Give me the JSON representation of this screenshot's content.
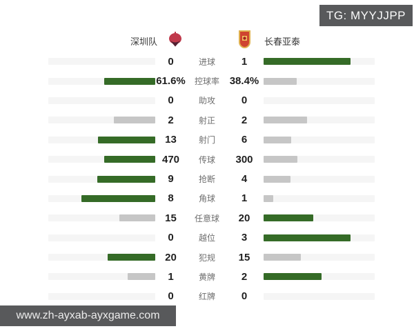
{
  "watermarks": {
    "telegram": "TG: MYYJJPP",
    "website": "www.zh-ayxab-ayxgame.com"
  },
  "header": {
    "home_team": {
      "name": "深圳队"
    },
    "away_team": {
      "name": "长春亚泰"
    }
  },
  "rows": [
    {
      "label": "进球",
      "home": "0",
      "away": "1"
    },
    {
      "label": "控球率",
      "home": "61.6%",
      "away": "38.4%"
    },
    {
      "label": "助攻",
      "home": "0",
      "away": "0"
    },
    {
      "label": "射正",
      "home": "2",
      "away": "2"
    },
    {
      "label": "射门",
      "home": "13",
      "away": "6"
    },
    {
      "label": "传球",
      "home": "470",
      "away": "300"
    },
    {
      "label": "抢断",
      "home": "9",
      "away": "4"
    },
    {
      "label": "角球",
      "home": "8",
      "away": "1"
    },
    {
      "label": "任意球",
      "home": "15",
      "away": "20"
    },
    {
      "label": "越位",
      "home": "0",
      "away": "3"
    },
    {
      "label": "犯规",
      "home": "20",
      "away": "15"
    },
    {
      "label": "黄牌",
      "home": "1",
      "away": "2"
    },
    {
      "label": "红牌",
      "home": "0",
      "away": "0"
    }
  ],
  "chart_data": {
    "type": "bar",
    "subtype": "paired-horizontal-team-comparison",
    "categories": [
      "进球",
      "控球率",
      "助攻",
      "射正",
      "射门",
      "传球",
      "抢断",
      "角球",
      "任意球",
      "越位",
      "犯规",
      "黄牌",
      "红牌"
    ],
    "series": [
      {
        "name": "深圳队",
        "values": [
          0,
          61.6,
          0,
          2,
          13,
          470,
          9,
          8,
          15,
          0,
          20,
          1,
          0
        ]
      },
      {
        "name": "长春亚泰",
        "values": [
          1,
          38.4,
          0,
          2,
          6,
          300,
          4,
          1,
          20,
          3,
          15,
          2,
          0
        ]
      }
    ],
    "bar_rule": "width = value / (home+away) share, max fill ~78% of track; leading value green, trailing/equal gray, zero empty",
    "legend_position": "top",
    "grid": false
  },
  "colors": {
    "bar_green": "#356b27",
    "bar_gray": "#c6c6c6",
    "bar_track": "#f5f5f5",
    "watermark_bg": "#58595b",
    "value_text": "#1f1f1f",
    "label_text": "#6e6e6e",
    "home_logo_red": "#c0394b",
    "home_logo_dark": "#4f2233",
    "away_logo_red": "#cf4430",
    "away_logo_gold": "#e0b04e"
  }
}
